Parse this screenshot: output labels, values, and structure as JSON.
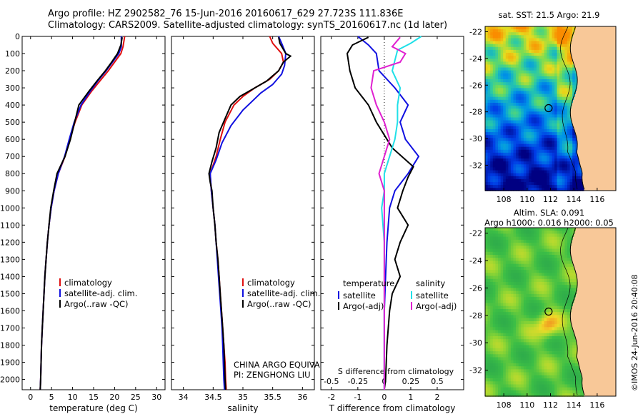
{
  "header": {
    "line1": "Argo profile: HZ 2902582_76 15-Jun-2016 20160617_629 27.723S 111.836E",
    "line2": "Climatology: CARS2009. Satellite-adjusted climatology: synTS_20160617.nc (1d later)"
  },
  "colors": {
    "climatology": "#e01010",
    "satellite": "#1010e0",
    "argo": "#000000",
    "s_satellite": "#20e0e8",
    "s_argo": "#e020d0",
    "land": "#f8c898"
  },
  "depth_axis": {
    "ticks": [
      0,
      100,
      200,
      300,
      400,
      500,
      600,
      700,
      800,
      900,
      1000,
      1100,
      1200,
      1300,
      1400,
      1500,
      1600,
      1700,
      1800,
      1900,
      2000
    ],
    "range": [
      0,
      2060
    ]
  },
  "chart_data": [
    {
      "type": "line",
      "id": "temperature",
      "xlabel": "temperature (deg C)",
      "xlim": [
        -2,
        32
      ],
      "xticks": [
        0,
        5,
        10,
        15,
        20,
        25,
        30
      ],
      "legend": [
        "climatology",
        "satellite-adj. clim.",
        "Argo(..raw -QC)"
      ],
      "series": [
        {
          "name": "climatology",
          "values": [
            [
              22.4,
              0
            ],
            [
              22.0,
              60
            ],
            [
              21.5,
              100
            ],
            [
              20.0,
              150
            ],
            [
              18.5,
              200
            ],
            [
              16.5,
              260
            ],
            [
              14.5,
              320
            ],
            [
              12.2,
              400
            ],
            [
              10.6,
              500
            ],
            [
              9.3,
              600
            ],
            [
              8.2,
              700
            ],
            [
              6.6,
              800
            ],
            [
              5.6,
              900
            ],
            [
              4.9,
              1000
            ],
            [
              4.4,
              1100
            ],
            [
              4.0,
              1200
            ],
            [
              3.7,
              1300
            ],
            [
              3.4,
              1400
            ],
            [
              3.2,
              1500
            ],
            [
              3.0,
              1600
            ],
            [
              2.8,
              1700
            ],
            [
              2.6,
              1800
            ],
            [
              2.5,
              1900
            ],
            [
              2.4,
              2000
            ],
            [
              2.3,
              2060
            ]
          ]
        },
        {
          "name": "satellite-adj. clim.",
          "values": [
            [
              21.6,
              0
            ],
            [
              21.6,
              60
            ],
            [
              21.0,
              100
            ],
            [
              19.5,
              150
            ],
            [
              18.0,
              200
            ],
            [
              16.0,
              260
            ],
            [
              14.2,
              320
            ],
            [
              12.0,
              400
            ],
            [
              10.4,
              500
            ],
            [
              9.2,
              600
            ],
            [
              8.1,
              700
            ],
            [
              6.6,
              800
            ],
            [
              5.6,
              900
            ],
            [
              4.9,
              1000
            ],
            [
              4.4,
              1100
            ],
            [
              4.0,
              1200
            ],
            [
              3.7,
              1300
            ],
            [
              3.4,
              1400
            ],
            [
              3.2,
              1500
            ],
            [
              3.0,
              1600
            ],
            [
              2.8,
              1700
            ],
            [
              2.6,
              1800
            ],
            [
              2.5,
              1900
            ],
            [
              2.4,
              2000
            ],
            [
              2.3,
              2060
            ]
          ]
        },
        {
          "name": "Argo(..raw -QC)",
          "values": [
            [
              21.8,
              5
            ],
            [
              21.5,
              50
            ],
            [
              20.7,
              100
            ],
            [
              19.3,
              150
            ],
            [
              17.8,
              200
            ],
            [
              15.8,
              260
            ],
            [
              13.9,
              320
            ],
            [
              11.5,
              400
            ],
            [
              10.5,
              500
            ],
            [
              9.5,
              600
            ],
            [
              8.2,
              700
            ],
            [
              6.3,
              800
            ],
            [
              5.5,
              900
            ],
            [
              4.8,
              1000
            ],
            [
              4.4,
              1100
            ],
            [
              4.0,
              1200
            ],
            [
              3.7,
              1300
            ],
            [
              3.4,
              1400
            ],
            [
              3.2,
              1500
            ],
            [
              3.0,
              1600
            ],
            [
              2.8,
              1700
            ],
            [
              2.6,
              1800
            ],
            [
              2.5,
              1900
            ],
            [
              2.4,
              2000
            ],
            [
              2.3,
              2060
            ]
          ]
        }
      ]
    },
    {
      "type": "line",
      "id": "salinity",
      "xlabel": "salinity",
      "xlim": [
        33.8,
        36.2
      ],
      "xticks": [
        34,
        34.5,
        35,
        35.5,
        36
      ],
      "legend": [
        "climatology",
        "satellite-adj. clim.",
        "Argo(..raw -QC)"
      ],
      "annotations": [
        "CHINA ARGO EQUIVALENT",
        "PI: ZENGHONG LIU"
      ],
      "series": [
        {
          "name": "climatology",
          "values": [
            [
              35.45,
              0
            ],
            [
              35.5,
              40
            ],
            [
              35.65,
              100
            ],
            [
              35.68,
              150
            ],
            [
              35.6,
              200
            ],
            [
              35.45,
              250
            ],
            [
              35.2,
              300
            ],
            [
              35.0,
              350
            ],
            [
              34.85,
              400
            ],
            [
              34.7,
              500
            ],
            [
              34.62,
              600
            ],
            [
              34.55,
              700
            ],
            [
              34.45,
              800
            ],
            [
              34.47,
              900
            ],
            [
              34.5,
              1000
            ],
            [
              34.53,
              1100
            ],
            [
              34.55,
              1200
            ],
            [
              34.58,
              1300
            ],
            [
              34.6,
              1400
            ],
            [
              34.62,
              1500
            ],
            [
              34.64,
              1600
            ],
            [
              34.66,
              1700
            ],
            [
              34.68,
              1800
            ],
            [
              34.7,
              1900
            ],
            [
              34.71,
              2000
            ],
            [
              34.72,
              2060
            ]
          ]
        },
        {
          "name": "satellite-adj. clim.",
          "values": [
            [
              35.6,
              0
            ],
            [
              35.65,
              40
            ],
            [
              35.72,
              100
            ],
            [
              35.7,
              170
            ],
            [
              35.65,
              220
            ],
            [
              35.5,
              280
            ],
            [
              35.3,
              330
            ],
            [
              35.15,
              380
            ],
            [
              35.0,
              430
            ],
            [
              34.8,
              520
            ],
            [
              34.65,
              620
            ],
            [
              34.55,
              720
            ],
            [
              34.45,
              800
            ],
            [
              34.47,
              900
            ],
            [
              34.5,
              1000
            ],
            [
              34.53,
              1100
            ],
            [
              34.55,
              1200
            ],
            [
              34.57,
              1300
            ],
            [
              34.59,
              1400
            ],
            [
              34.61,
              1500
            ],
            [
              34.63,
              1600
            ],
            [
              34.65,
              1700
            ],
            [
              34.66,
              1800
            ],
            [
              34.67,
              1900
            ],
            [
              34.68,
              2000
            ],
            [
              34.69,
              2060
            ]
          ]
        },
        {
          "name": "Argo(..raw -QC)",
          "values": [
            [
              35.6,
              5
            ],
            [
              35.62,
              40
            ],
            [
              35.72,
              100
            ],
            [
              35.8,
              115
            ],
            [
              35.68,
              150
            ],
            [
              35.6,
              200
            ],
            [
              35.4,
              260
            ],
            [
              35.2,
              300
            ],
            [
              34.95,
              350
            ],
            [
              34.8,
              400
            ],
            [
              34.7,
              480
            ],
            [
              34.6,
              560
            ],
            [
              34.55,
              650
            ],
            [
              34.48,
              730
            ],
            [
              34.43,
              800
            ],
            [
              34.45,
              850
            ],
            [
              34.48,
              900
            ],
            [
              34.5,
              1000
            ],
            [
              34.53,
              1100
            ],
            [
              34.55,
              1200
            ],
            [
              34.58,
              1300
            ],
            [
              34.6,
              1400
            ],
            [
              34.62,
              1500
            ],
            [
              34.64,
              1600
            ],
            [
              34.66,
              1700
            ],
            [
              34.68,
              1800
            ],
            [
              34.69,
              1900
            ],
            [
              34.7,
              2000
            ],
            [
              34.71,
              2060
            ]
          ]
        }
      ]
    },
    {
      "type": "line",
      "id": "differences",
      "xlabel": "T difference from climatology",
      "xlim": [
        -2.4,
        3.0
      ],
      "xticks": [
        -2,
        -1,
        0,
        1,
        2
      ],
      "top_label": "S difference from climatology",
      "top_ticks": [
        "-0.5",
        "-0.25",
        "0",
        "0.25",
        "0.5"
      ],
      "top_tick_values": [
        -2,
        -1,
        0,
        1,
        2
      ],
      "legend_headers": [
        "temperature",
        "salinity"
      ],
      "legend": [
        "satellite",
        "Argo(-adj)",
        "satellite",
        "Argo(-adj)"
      ],
      "series": [
        {
          "name": "satellite",
          "values": [
            [
              -1.0,
              0
            ],
            [
              -0.6,
              50
            ],
            [
              -0.3,
              100
            ],
            [
              -0.2,
              200
            ],
            [
              0.4,
              300
            ],
            [
              0.9,
              400
            ],
            [
              0.6,
              500
            ],
            [
              0.8,
              600
            ],
            [
              1.3,
              700
            ],
            [
              0.9,
              800
            ],
            [
              0.4,
              900
            ],
            [
              0.2,
              1000
            ],
            [
              0.1,
              1200
            ],
            [
              0.05,
              1400
            ],
            [
              0.0,
              1600
            ],
            [
              0.0,
              1800
            ],
            [
              0.0,
              2060
            ]
          ]
        },
        {
          "name": "Argo(-adj)",
          "values": [
            [
              -0.6,
              5
            ],
            [
              -1.2,
              50
            ],
            [
              -1.4,
              100
            ],
            [
              -1.3,
              200
            ],
            [
              -1.1,
              300
            ],
            [
              -0.6,
              400
            ],
            [
              -0.3,
              500
            ],
            [
              0.3,
              650
            ],
            [
              1.1,
              760
            ],
            [
              0.9,
              820
            ],
            [
              0.7,
              900
            ],
            [
              0.5,
              1000
            ],
            [
              0.9,
              1100
            ],
            [
              0.6,
              1200
            ],
            [
              0.4,
              1300
            ],
            [
              0.6,
              1400
            ],
            [
              0.3,
              1500
            ],
            [
              0.2,
              1600
            ],
            [
              0.1,
              1800
            ],
            [
              0.05,
              2000
            ],
            [
              0.0,
              2060
            ]
          ]
        },
        {
          "name": "salinity satellite",
          "values": [
            [
              1.4,
              0
            ],
            [
              1.0,
              40
            ],
            [
              0.5,
              80
            ],
            [
              0.3,
              200
            ],
            [
              0.6,
              300
            ],
            [
              0.5,
              400
            ],
            [
              0.5,
              500
            ],
            [
              0.4,
              600
            ],
            [
              0.2,
              700
            ],
            [
              0.0,
              800
            ],
            [
              0.0,
              900
            ],
            [
              -0.1,
              1000
            ],
            [
              0.0,
              1200
            ],
            [
              0.0,
              1500
            ],
            [
              0.0,
              1800
            ],
            [
              0.0,
              2060
            ]
          ]
        },
        {
          "name": "salinity Argo(-adj)",
          "values": [
            [
              0.6,
              5
            ],
            [
              0.3,
              60
            ],
            [
              0.8,
              100
            ],
            [
              0.6,
              150
            ],
            [
              -0.4,
              200
            ],
            [
              -0.5,
              300
            ],
            [
              -0.3,
              400
            ],
            [
              0.0,
              500
            ],
            [
              0.2,
              600
            ],
            [
              0.0,
              700
            ],
            [
              -0.2,
              800
            ],
            [
              0.0,
              900
            ],
            [
              0.0,
              1100
            ],
            [
              0.0,
              1400
            ],
            [
              0.0,
              1800
            ],
            [
              0.0,
              2060
            ]
          ]
        }
      ]
    },
    {
      "type": "heatmap",
      "id": "sst-map",
      "title": "sat. SST: 21.5  Argo: 21.9",
      "xticks": [
        108,
        110,
        112,
        114,
        116
      ],
      "yticks": [
        -22,
        -24,
        -26,
        -28,
        -30,
        -32
      ],
      "xlim": [
        106.4,
        117.6
      ],
      "ylim": [
        -33.9,
        -21.6
      ],
      "marker": {
        "lon": 111.836,
        "lat": -27.723
      }
    },
    {
      "type": "heatmap",
      "id": "sla-map",
      "title": "Altim. SLA: 0.091",
      "subtitle": "Argo h1000: 0.016 h2000: 0.05",
      "xticks": [
        108,
        110,
        112,
        114,
        116
      ],
      "yticks": [
        -22,
        -24,
        -26,
        -28,
        -30,
        -32
      ],
      "xlim": [
        106.4,
        117.6
      ],
      "ylim": [
        -33.9,
        -21.6
      ],
      "marker": {
        "lon": 111.836,
        "lat": -27.723
      }
    }
  ],
  "stamp": "©IMOS 24-Jun-2016 20:40:08"
}
